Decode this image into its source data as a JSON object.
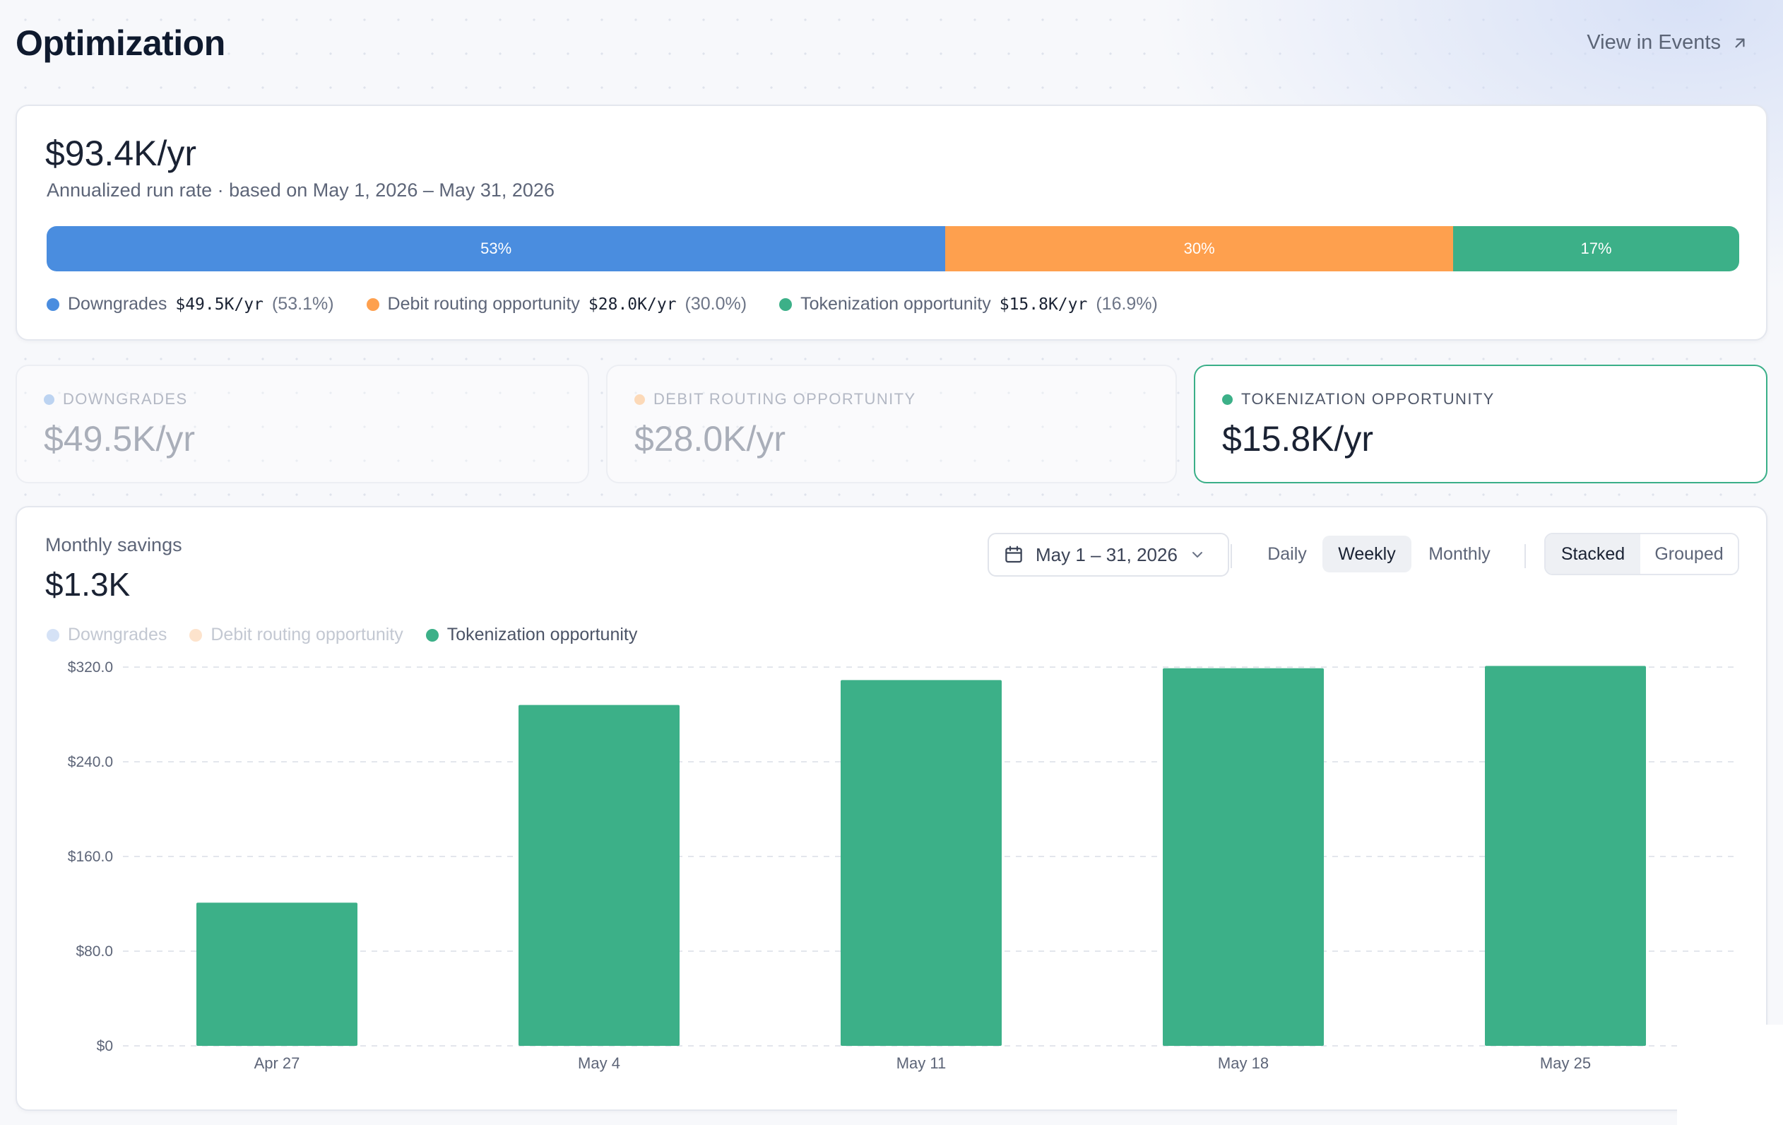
{
  "header": {
    "title": "Optimization",
    "view_events_label": "View in Events"
  },
  "summary": {
    "value": "$93.4K/yr",
    "subtitle": "Annualized run rate · based on May 1, 2026 – May 31, 2026",
    "segments": [
      {
        "label": "53%",
        "fraction": 0.531,
        "color": "#4a8ddf"
      },
      {
        "label": "30%",
        "fraction": 0.3,
        "color": "#fea04e"
      },
      {
        "label": "17%",
        "fraction": 0.169,
        "color": "#3cb088"
      }
    ],
    "legend": [
      {
        "name": "Downgrades",
        "value": "$49.5K/yr",
        "pct": "(53.1%)",
        "color": "#4a8ddf"
      },
      {
        "name": "Debit routing opportunity",
        "value": "$28.0K/yr",
        "pct": "(30.0%)",
        "color": "#fea04e"
      },
      {
        "name": "Tokenization opportunity",
        "value": "$15.8K/yr",
        "pct": "(16.9%)",
        "color": "#3cb088"
      }
    ]
  },
  "tiles": [
    {
      "label": "DOWNGRADES",
      "value": "$49.5K/yr",
      "dot_color": "#bcd3f1"
    },
    {
      "label": "DEBIT ROUTING OPPORTUNITY",
      "value": "$28.0K/yr",
      "dot_color": "#fcd9b8"
    },
    {
      "label": "TOKENIZATION OPPORTUNITY",
      "value": "$15.8K/yr",
      "dot_color": "#3cb088"
    }
  ],
  "chart_panel": {
    "title": "Monthly savings",
    "value": "$1.3K",
    "date_range": "May 1 – 31, 2026",
    "granularity": [
      "Daily",
      "Weekly",
      "Monthly"
    ],
    "granularity_selected": "Weekly",
    "modes": [
      "Stacked",
      "Grouped"
    ],
    "mode_selected": "Stacked",
    "legend": [
      {
        "name": "Downgrades",
        "active": false,
        "color": "#d5e2f6"
      },
      {
        "name": "Debit routing opportunity",
        "active": false,
        "color": "#fde3cc"
      },
      {
        "name": "Tokenization opportunity",
        "active": true,
        "color": "#3cb088"
      }
    ]
  },
  "chart_data": {
    "type": "bar",
    "categories": [
      "Apr 27",
      "May 4",
      "May 11",
      "May 18",
      "May 25"
    ],
    "series": [
      {
        "name": "Tokenization opportunity",
        "values": [
          121,
          288,
          309,
          319,
          321
        ],
        "color": "#3cb088"
      }
    ],
    "ylim": [
      0,
      320
    ],
    "yticks": [
      0,
      80,
      160,
      240,
      320
    ],
    "ytick_labels": [
      "$0",
      "$80.0",
      "$160.0",
      "$240.0",
      "$320.0"
    ],
    "grid": true
  }
}
